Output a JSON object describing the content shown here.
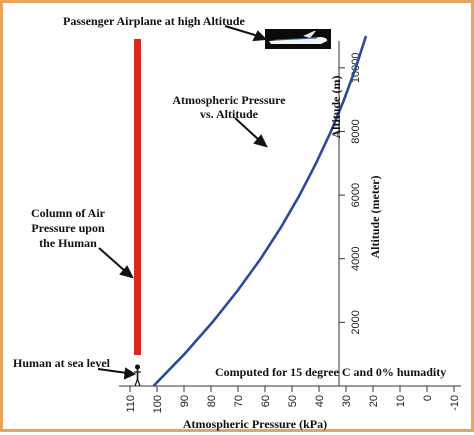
{
  "chart_data": {
    "type": "line",
    "title": "",
    "xlabel": "Atmospheric Pressure (kPa)",
    "ylabel_secondary": "Altitude (m)",
    "ylabel": "Altitude (meter)",
    "xlim": [
      110,
      -10
    ],
    "ylim": [
      0,
      11000
    ],
    "x_ticks": [
      110,
      100,
      90,
      80,
      70,
      60,
      50,
      40,
      30,
      20,
      10,
      0,
      -10
    ],
    "y_ticks": [
      2000,
      4000,
      6000,
      8000,
      10000
    ],
    "series": [
      {
        "name": "Atmospheric Pressure vs. Altitude",
        "color": "#2b4a9a",
        "points": [
          {
            "x": 101.3,
            "y": 0
          },
          {
            "x": 89.9,
            "y": 1000
          },
          {
            "x": 79.5,
            "y": 2000
          },
          {
            "x": 70.1,
            "y": 3000
          },
          {
            "x": 61.6,
            "y": 4000
          },
          {
            "x": 54.0,
            "y": 5000
          },
          {
            "x": 47.2,
            "y": 6000
          },
          {
            "x": 41.1,
            "y": 7000
          },
          {
            "x": 35.6,
            "y": 8000
          },
          {
            "x": 30.7,
            "y": 9000
          },
          {
            "x": 26.4,
            "y": 10000
          },
          {
            "x": 22.6,
            "y": 11000
          }
        ]
      }
    ],
    "air_column": {
      "color": "#d62a1e"
    },
    "annotations": {
      "airplane": "Passenger Airplane at high Altitude",
      "curve_line1": "Atmospheric Pressure",
      "curve_line2": "vs. Altitude",
      "column_line1": "Column of Air",
      "column_line2": "Pressure upon",
      "column_line3": "the Human",
      "human": "Human at sea level",
      "computed": "Computed for 15 degree C and 0% humadity"
    }
  }
}
